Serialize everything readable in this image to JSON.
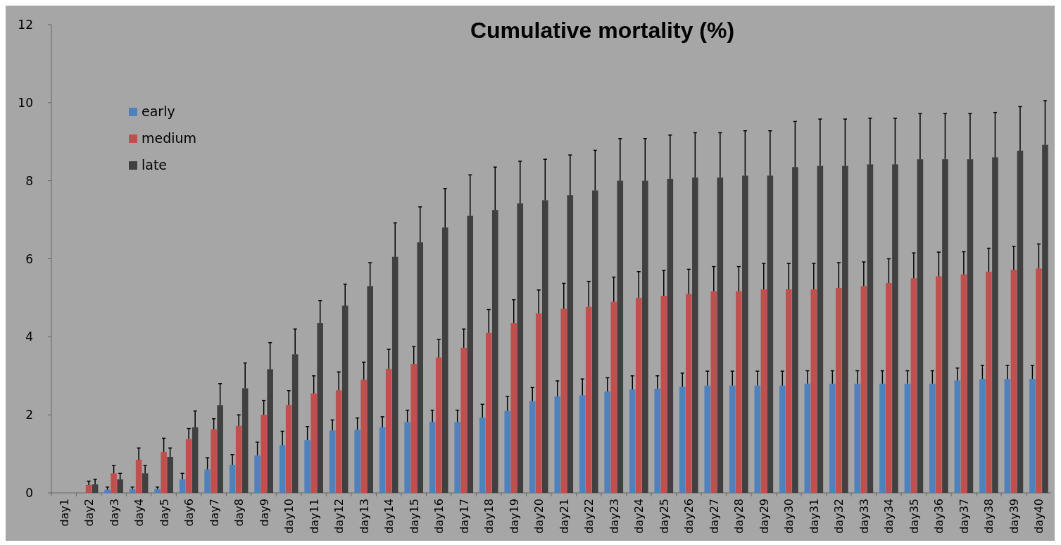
{
  "chart_data": {
    "type": "bar",
    "title": "Cumulative mortality (%)",
    "categories": [
      "day1",
      "day2",
      "day3",
      "day4",
      "day5",
      "day6",
      "day7",
      "day8",
      "day9",
      "day10",
      "day11",
      "day12",
      "day13",
      "day14",
      "day15",
      "day16",
      "day17",
      "day18",
      "day19",
      "day20",
      "day21",
      "day22",
      "day23",
      "day24",
      "day25",
      "day26",
      "day27",
      "day28",
      "day29",
      "day30",
      "day31",
      "day32",
      "day33",
      "day34",
      "day35",
      "day36",
      "day37",
      "day38",
      "day39",
      "day40"
    ],
    "series": [
      {
        "name": "early",
        "color": "#4f81bd",
        "values": [
          0,
          0,
          0.08,
          0.1,
          0.1,
          0.35,
          0.6,
          0.72,
          0.96,
          1.22,
          1.35,
          1.6,
          1.62,
          1.68,
          1.82,
          1.82,
          1.82,
          1.93,
          2.1,
          2.35,
          2.47,
          2.5,
          2.6,
          2.65,
          2.67,
          2.72,
          2.75,
          2.75,
          2.75,
          2.75,
          2.8,
          2.8,
          2.8,
          2.8,
          2.8,
          2.8,
          2.88,
          2.92,
          2.92,
          2.92
        ],
        "errors": [
          null,
          null,
          [
            0.08,
            0.15
          ],
          [
            0.1,
            0.15
          ],
          [
            0.1,
            0.15
          ],
          [
            0.35,
            0.5
          ],
          [
            0.6,
            0.9
          ],
          [
            0.72,
            0.98
          ],
          [
            0.96,
            1.3
          ],
          [
            1.22,
            1.58
          ],
          [
            1.35,
            1.7
          ],
          [
            1.6,
            1.87
          ],
          [
            1.62,
            1.92
          ],
          [
            1.68,
            1.95
          ],
          [
            1.82,
            2.12
          ],
          [
            1.82,
            2.12
          ],
          [
            1.82,
            2.12
          ],
          [
            1.93,
            2.27
          ],
          [
            2.1,
            2.47
          ],
          [
            2.35,
            2.7
          ],
          [
            2.47,
            2.87
          ],
          [
            2.5,
            2.92
          ],
          [
            2.6,
            2.95
          ],
          [
            2.65,
            3.0
          ],
          [
            2.67,
            3.0
          ],
          [
            2.72,
            3.07
          ],
          [
            2.75,
            3.12
          ],
          [
            2.75,
            3.12
          ],
          [
            2.75,
            3.12
          ],
          [
            2.75,
            3.12
          ],
          [
            2.8,
            3.13
          ],
          [
            2.8,
            3.13
          ],
          [
            2.8,
            3.13
          ],
          [
            2.8,
            3.13
          ],
          [
            2.8,
            3.13
          ],
          [
            2.8,
            3.13
          ],
          [
            2.88,
            3.2
          ],
          [
            2.92,
            3.27
          ],
          [
            2.92,
            3.27
          ],
          [
            2.92,
            3.27
          ]
        ]
      },
      {
        "name": "medium",
        "color": "#c0504d",
        "values": [
          0,
          0.2,
          0.5,
          0.85,
          1.05,
          1.38,
          1.63,
          1.72,
          2.0,
          2.25,
          2.55,
          2.63,
          2.9,
          3.18,
          3.3,
          3.47,
          3.72,
          4.1,
          4.35,
          4.6,
          4.72,
          4.77,
          4.9,
          5.0,
          5.05,
          5.1,
          5.17,
          5.17,
          5.22,
          5.22,
          5.22,
          5.25,
          5.3,
          5.38,
          5.5,
          5.55,
          5.6,
          5.67,
          5.72,
          5.75
        ],
        "errors": [
          null,
          [
            0.2,
            0.3
          ],
          [
            0.5,
            0.7
          ],
          [
            0.85,
            1.15
          ],
          [
            1.05,
            1.4
          ],
          [
            1.38,
            1.65
          ],
          [
            1.63,
            1.9
          ],
          [
            1.72,
            2.0
          ],
          [
            2.0,
            2.37
          ],
          [
            2.25,
            2.62
          ],
          [
            2.55,
            3.0
          ],
          [
            2.63,
            3.1
          ],
          [
            2.9,
            3.35
          ],
          [
            3.18,
            3.68
          ],
          [
            3.3,
            3.75
          ],
          [
            3.47,
            3.93
          ],
          [
            3.72,
            4.2
          ],
          [
            4.1,
            4.7
          ],
          [
            4.35,
            4.95
          ],
          [
            4.6,
            5.2
          ],
          [
            4.72,
            5.37
          ],
          [
            4.77,
            5.42
          ],
          [
            4.9,
            5.53
          ],
          [
            5.0,
            5.67
          ],
          [
            5.05,
            5.7
          ],
          [
            5.1,
            5.73
          ],
          [
            5.17,
            5.8
          ],
          [
            5.17,
            5.8
          ],
          [
            5.22,
            5.88
          ],
          [
            5.22,
            5.88
          ],
          [
            5.22,
            5.88
          ],
          [
            5.25,
            5.9
          ],
          [
            5.3,
            5.92
          ],
          [
            5.38,
            6.0
          ],
          [
            5.5,
            6.15
          ],
          [
            5.55,
            6.17
          ],
          [
            5.6,
            6.18
          ],
          [
            5.67,
            6.27
          ],
          [
            5.72,
            6.32
          ],
          [
            5.75,
            6.38
          ]
        ]
      },
      {
        "name": "late",
        "color": "#404040",
        "values": [
          0,
          0.22,
          0.35,
          0.5,
          0.92,
          1.68,
          2.25,
          2.68,
          3.17,
          3.55,
          4.35,
          4.8,
          5.3,
          6.05,
          6.42,
          6.8,
          7.1,
          7.25,
          7.42,
          7.5,
          7.63,
          7.75,
          8.0,
          8.0,
          8.05,
          8.08,
          8.08,
          8.13,
          8.13,
          8.35,
          8.38,
          8.38,
          8.42,
          8.42,
          8.55,
          8.55,
          8.55,
          8.6,
          8.77,
          8.92
        ],
        "errors": [
          null,
          [
            0.22,
            0.35
          ],
          [
            0.35,
            0.5
          ],
          [
            0.5,
            0.7
          ],
          [
            0.92,
            1.15
          ],
          [
            1.68,
            2.1
          ],
          [
            2.25,
            2.8
          ],
          [
            2.68,
            3.33
          ],
          [
            3.17,
            3.85
          ],
          [
            3.55,
            4.2
          ],
          [
            4.35,
            4.93
          ],
          [
            4.8,
            5.35
          ],
          [
            5.3,
            5.9
          ],
          [
            6.05,
            6.92
          ],
          [
            6.42,
            7.33
          ],
          [
            6.8,
            7.8
          ],
          [
            7.1,
            8.15
          ],
          [
            7.25,
            8.35
          ],
          [
            7.42,
            8.5
          ],
          [
            7.5,
            8.55
          ],
          [
            7.63,
            8.66
          ],
          [
            7.75,
            8.78
          ],
          [
            8.0,
            9.08
          ],
          [
            8.0,
            9.08
          ],
          [
            8.05,
            9.17
          ],
          [
            8.08,
            9.23
          ],
          [
            8.08,
            9.23
          ],
          [
            8.13,
            9.28
          ],
          [
            8.13,
            9.28
          ],
          [
            8.35,
            9.52
          ],
          [
            8.38,
            9.58
          ],
          [
            8.38,
            9.58
          ],
          [
            8.42,
            9.6
          ],
          [
            8.42,
            9.6
          ],
          [
            8.55,
            9.72
          ],
          [
            8.55,
            9.72
          ],
          [
            8.55,
            9.72
          ],
          [
            8.6,
            9.75
          ],
          [
            8.77,
            9.9
          ],
          [
            8.92,
            10.05
          ]
        ]
      }
    ],
    "ylim": [
      0,
      12
    ],
    "yticks": [
      0,
      2,
      4,
      6,
      8,
      10,
      12
    ],
    "grid": false,
    "legend": "top left"
  }
}
